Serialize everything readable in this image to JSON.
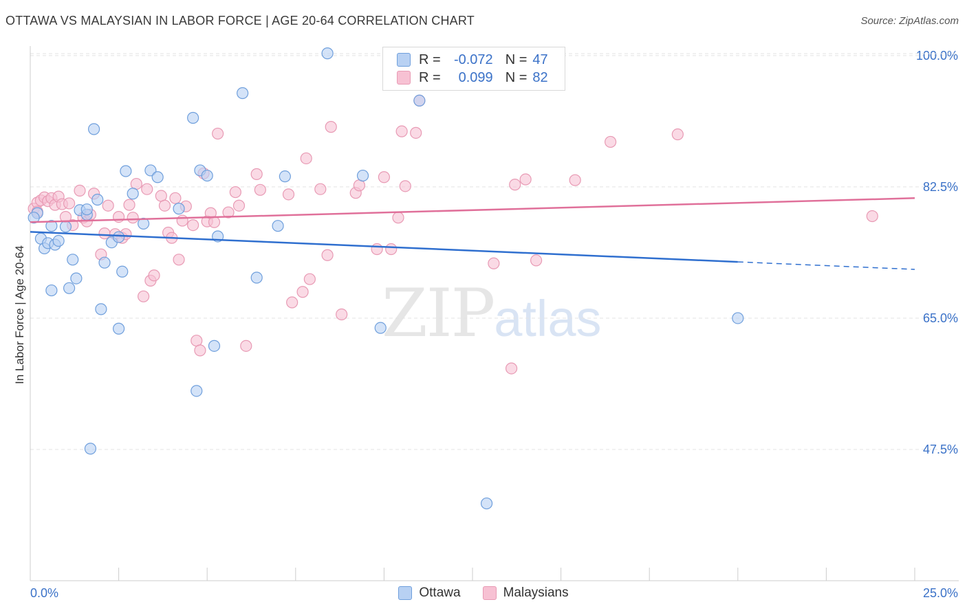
{
  "title": "OTTAWA VS MALAYSIAN IN LABOR FORCE | AGE 20-64 CORRELATION CHART",
  "source": "Source: ZipAtlas.com",
  "watermark": {
    "zip": "ZIP",
    "atlas": "atlas"
  },
  "legend_top": {
    "rows": [
      {
        "r_label": "R =",
        "r_value": "-0.072",
        "n_label": "N =",
        "n_value": "47"
      },
      {
        "r_label": "R =",
        "r_value": "0.099",
        "n_label": "N =",
        "n_value": "82"
      }
    ]
  },
  "legend_bottom": {
    "items": [
      "Ottawa",
      "Malaysians"
    ]
  },
  "colors": {
    "ottawa_fill": "#b8d1f3",
    "ottawa_stroke": "#6f9fdc",
    "ottawa_line": "#2f6fcf",
    "malaysian_fill": "#f7c1d3",
    "malaysian_stroke": "#e89ab4",
    "malaysian_line": "#e0709a",
    "tick_label": "#3b72c8",
    "grid": "#e3e3e3"
  },
  "chart_data": {
    "type": "scatter",
    "ylabel": "In Labor Force | Age 20-64",
    "xlim": [
      0,
      25
    ],
    "ylim": [
      30,
      101
    ],
    "x_tick_labels": [
      "0.0%",
      "25.0%"
    ],
    "y_ticks": [
      47.5,
      65.0,
      82.5,
      100.0
    ],
    "y_tick_labels": [
      "47.5%",
      "65.0%",
      "82.5%",
      "100.0%"
    ],
    "grid": true,
    "series": [
      {
        "name": "Ottawa",
        "points": [
          [
            0.2,
            79.0
          ],
          [
            0.3,
            75.6
          ],
          [
            0.4,
            74.3
          ],
          [
            0.5,
            75.0
          ],
          [
            0.6,
            77.3
          ],
          [
            0.6,
            68.7
          ],
          [
            0.7,
            74.8
          ],
          [
            0.8,
            75.3
          ],
          [
            1.0,
            77.2
          ],
          [
            1.1,
            69.0
          ],
          [
            1.2,
            72.8
          ],
          [
            1.3,
            70.3
          ],
          [
            1.4,
            79.4
          ],
          [
            1.6,
            78.8
          ],
          [
            1.6,
            79.5
          ],
          [
            1.7,
            47.6
          ],
          [
            1.8,
            90.2
          ],
          [
            1.9,
            80.8
          ],
          [
            2.0,
            66.2
          ],
          [
            2.1,
            72.4
          ],
          [
            2.3,
            75.1
          ],
          [
            2.5,
            75.8
          ],
          [
            2.5,
            63.6
          ],
          [
            2.6,
            71.2
          ],
          [
            2.7,
            84.6
          ],
          [
            2.9,
            81.6
          ],
          [
            3.2,
            77.6
          ],
          [
            3.4,
            84.7
          ],
          [
            3.6,
            83.8
          ],
          [
            4.2,
            79.6
          ],
          [
            4.6,
            91.7
          ],
          [
            4.7,
            55.3
          ],
          [
            4.8,
            84.7
          ],
          [
            5.0,
            84.0
          ],
          [
            5.2,
            61.3
          ],
          [
            5.3,
            75.9
          ],
          [
            6.0,
            95.0
          ],
          [
            6.4,
            70.4
          ],
          [
            7.0,
            77.3
          ],
          [
            7.2,
            83.9
          ],
          [
            8.4,
            100.3
          ],
          [
            9.4,
            84.0
          ],
          [
            9.9,
            63.7
          ],
          [
            11.0,
            94.0
          ],
          [
            12.9,
            40.3
          ],
          [
            20.0,
            65.0
          ],
          [
            0.1,
            78.4
          ]
        ]
      },
      {
        "name": "Malaysians",
        "points": [
          [
            0.1,
            79.6
          ],
          [
            0.2,
            80.4
          ],
          [
            0.2,
            79.2
          ],
          [
            0.3,
            80.7
          ],
          [
            0.4,
            81.1
          ],
          [
            0.5,
            80.6
          ],
          [
            0.6,
            81.0
          ],
          [
            0.7,
            80.1
          ],
          [
            0.8,
            81.2
          ],
          [
            0.9,
            80.2
          ],
          [
            1.0,
            78.5
          ],
          [
            1.1,
            80.3
          ],
          [
            1.2,
            77.4
          ],
          [
            1.4,
            82.0
          ],
          [
            1.5,
            78.4
          ],
          [
            1.6,
            77.9
          ],
          [
            1.7,
            78.8
          ],
          [
            1.8,
            81.6
          ],
          [
            2.0,
            73.5
          ],
          [
            2.1,
            76.3
          ],
          [
            2.2,
            80.0
          ],
          [
            2.4,
            76.2
          ],
          [
            2.5,
            78.5
          ],
          [
            2.6,
            75.7
          ],
          [
            2.7,
            76.2
          ],
          [
            2.8,
            80.1
          ],
          [
            2.9,
            78.4
          ],
          [
            3.0,
            82.9
          ],
          [
            3.2,
            67.9
          ],
          [
            3.3,
            82.2
          ],
          [
            3.4,
            70.0
          ],
          [
            3.5,
            70.7
          ],
          [
            3.7,
            81.3
          ],
          [
            3.8,
            80.0
          ],
          [
            3.9,
            76.4
          ],
          [
            4.0,
            75.7
          ],
          [
            4.1,
            81.0
          ],
          [
            4.2,
            72.8
          ],
          [
            4.3,
            78.0
          ],
          [
            4.4,
            79.9
          ],
          [
            4.6,
            77.4
          ],
          [
            4.7,
            62.0
          ],
          [
            4.8,
            60.7
          ],
          [
            4.9,
            84.3
          ],
          [
            5.0,
            77.9
          ],
          [
            5.1,
            79.0
          ],
          [
            5.2,
            77.8
          ],
          [
            5.3,
            89.6
          ],
          [
            5.6,
            79.1
          ],
          [
            5.8,
            81.8
          ],
          [
            5.9,
            80.0
          ],
          [
            6.1,
            61.3
          ],
          [
            6.4,
            84.2
          ],
          [
            6.5,
            82.1
          ],
          [
            7.3,
            81.5
          ],
          [
            7.4,
            67.1
          ],
          [
            7.7,
            68.5
          ],
          [
            7.8,
            86.3
          ],
          [
            7.9,
            70.2
          ],
          [
            8.2,
            82.2
          ],
          [
            8.4,
            73.4
          ],
          [
            8.5,
            90.5
          ],
          [
            8.8,
            65.5
          ],
          [
            9.2,
            81.7
          ],
          [
            9.3,
            82.7
          ],
          [
            9.8,
            74.2
          ],
          [
            10.0,
            83.8
          ],
          [
            10.2,
            74.2
          ],
          [
            10.4,
            78.4
          ],
          [
            10.5,
            89.9
          ],
          [
            10.6,
            82.6
          ],
          [
            10.9,
            89.7
          ],
          [
            11.0,
            94.0
          ],
          [
            13.1,
            72.3
          ],
          [
            13.6,
            58.3
          ],
          [
            13.7,
            82.8
          ],
          [
            14.0,
            83.5
          ],
          [
            14.3,
            72.7
          ],
          [
            15.4,
            83.4
          ],
          [
            16.4,
            88.5
          ],
          [
            18.3,
            89.5
          ],
          [
            23.8,
            78.6
          ]
        ]
      }
    ],
    "trendlines": [
      {
        "series": "Ottawa",
        "x_start": 0,
        "y_start": 76.5,
        "x_end": 20.0,
        "y_end": 72.5,
        "dashed_to_x": 25,
        "dashed_to_y": 71.5
      },
      {
        "series": "Malaysians",
        "x_start": 0,
        "y_start": 77.8,
        "x_end": 25,
        "y_end": 81.0
      }
    ]
  }
}
